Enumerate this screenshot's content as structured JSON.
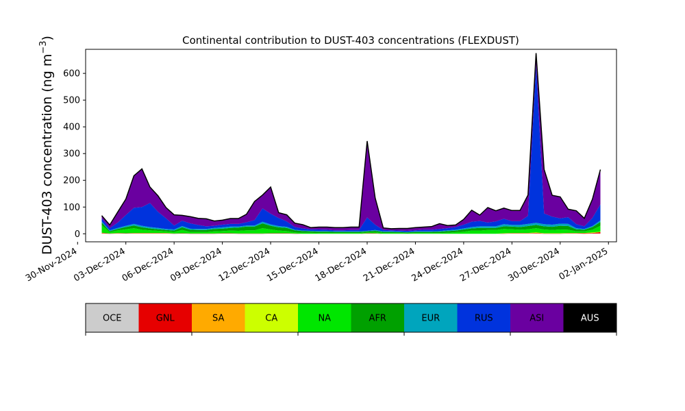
{
  "chart_data": {
    "type": "area",
    "stacked": true,
    "title": "Continental contribution to DUST-403 concentrations (FLEXDUST)",
    "ylabel": "DUST-403 concentration (ng m⁻³)",
    "ylabel_base": "DUST-403 concentration (ng m",
    "ylabel_exp": "−3",
    "ylabel_close": ")",
    "xlabel": "",
    "ylim": [
      -30,
      690
    ],
    "xlim": [
      "2024-11-30T12:00",
      "2025-01-02T12:00"
    ],
    "yticks": [
      0,
      100,
      200,
      300,
      400,
      500,
      600
    ],
    "xticks": [
      "2024-11-30",
      "2024-12-03",
      "2024-12-06",
      "2024-12-09",
      "2024-12-12",
      "2024-12-15",
      "2024-12-18",
      "2024-12-21",
      "2024-12-24",
      "2024-12-27",
      "2024-12-30",
      "2025-01-02"
    ],
    "xtick_labels": [
      "30-Nov-2024",
      "03-Dec-2024",
      "06-Dec-2024",
      "09-Dec-2024",
      "12-Dec-2024",
      "15-Dec-2024",
      "18-Dec-2024",
      "21-Dec-2024",
      "24-Dec-2024",
      "27-Dec-2024",
      "30-Dec-2024",
      "02-Jan-2025"
    ],
    "x": [
      "2024-12-01T12:00",
      "2024-12-02T00:00",
      "2024-12-02T12:00",
      "2024-12-03T00:00",
      "2024-12-03T12:00",
      "2024-12-04T00:00",
      "2024-12-04T12:00",
      "2024-12-05T00:00",
      "2024-12-05T12:00",
      "2024-12-06T00:00",
      "2024-12-06T12:00",
      "2024-12-07T00:00",
      "2024-12-07T12:00",
      "2024-12-08T00:00",
      "2024-12-08T12:00",
      "2024-12-09T00:00",
      "2024-12-09T12:00",
      "2024-12-10T00:00",
      "2024-12-10T12:00",
      "2024-12-11T00:00",
      "2024-12-11T12:00",
      "2024-12-12T00:00",
      "2024-12-12T12:00",
      "2024-12-13T00:00",
      "2024-12-13T12:00",
      "2024-12-14T00:00",
      "2024-12-14T12:00",
      "2024-12-15T00:00",
      "2024-12-15T12:00",
      "2024-12-16T00:00",
      "2024-12-16T12:00",
      "2024-12-17T00:00",
      "2024-12-17T12:00",
      "2024-12-18T00:00",
      "2024-12-18T12:00",
      "2024-12-19T00:00",
      "2024-12-19T12:00",
      "2024-12-20T00:00",
      "2024-12-20T12:00",
      "2024-12-21T00:00",
      "2024-12-21T12:00",
      "2024-12-22T00:00",
      "2024-12-22T12:00",
      "2024-12-23T00:00",
      "2024-12-23T12:00",
      "2024-12-24T00:00",
      "2024-12-24T12:00",
      "2024-12-25T00:00",
      "2024-12-25T12:00",
      "2024-12-26T00:00",
      "2024-12-26T12:00",
      "2024-12-27T00:00",
      "2024-12-27T12:00",
      "2024-12-28T00:00",
      "2024-12-28T12:00",
      "2024-12-29T00:00",
      "2024-12-29T12:00",
      "2024-12-30T00:00",
      "2024-12-30T12:00",
      "2024-12-31T00:00",
      "2024-12-31T12:00",
      "2025-01-01T00:00",
      "2025-01-01T12:00"
    ],
    "series": [
      {
        "name": "OCE",
        "color": "#cccccc",
        "values": [
          1,
          0,
          1,
          1,
          1,
          1,
          1,
          1,
          1,
          0,
          1,
          0,
          0,
          0,
          0,
          1,
          1,
          0,
          0,
          0,
          0,
          1,
          1,
          1,
          0,
          0,
          0,
          0,
          0,
          0,
          0,
          0,
          0,
          1,
          1,
          0,
          0,
          0,
          0,
          0,
          0,
          0,
          0,
          0,
          0,
          0,
          0,
          0,
          0,
          0,
          0,
          1,
          1,
          1,
          1,
          0,
          0,
          0,
          1,
          1,
          0,
          1,
          1
        ]
      },
      {
        "name": "GNL",
        "color": "#e60000",
        "values": [
          2,
          1,
          1,
          1,
          1,
          1,
          1,
          1,
          1,
          1,
          1,
          1,
          1,
          1,
          1,
          1,
          1,
          1,
          1,
          1,
          1,
          1,
          1,
          1,
          1,
          0,
          0,
          0,
          0,
          0,
          0,
          0,
          0,
          1,
          1,
          0,
          0,
          0,
          0,
          0,
          0,
          0,
          0,
          0,
          0,
          0,
          0,
          0,
          0,
          0,
          1,
          1,
          1,
          1,
          2,
          1,
          1,
          1,
          1,
          1,
          2,
          2,
          5
        ]
      },
      {
        "name": "SA",
        "color": "#ffaa00",
        "values": [
          0,
          0,
          0,
          0,
          0,
          0,
          0,
          0,
          0,
          0,
          0,
          0,
          0,
          0,
          0,
          0,
          0,
          0,
          0,
          0,
          0,
          0,
          0,
          0,
          0,
          0,
          0,
          0,
          0,
          0,
          0,
          0,
          0,
          0,
          0,
          0,
          0,
          0,
          0,
          0,
          0,
          0,
          0,
          0,
          0,
          0,
          0,
          0,
          0,
          0,
          0,
          0,
          0,
          0,
          0,
          0,
          0,
          0,
          0,
          0,
          0,
          0,
          0
        ]
      },
      {
        "name": "CA",
        "color": "#ccff00",
        "values": [
          1,
          0,
          1,
          0,
          1,
          1,
          1,
          1,
          1,
          0,
          0,
          0,
          0,
          0,
          0,
          0,
          0,
          0,
          0,
          0,
          0,
          0,
          0,
          0,
          0,
          0,
          0,
          0,
          0,
          0,
          0,
          0,
          0,
          0,
          0,
          0,
          0,
          0,
          0,
          0,
          0,
          0,
          0,
          0,
          0,
          0,
          0,
          0,
          0,
          0,
          1,
          1,
          1,
          1,
          2,
          1,
          1,
          1,
          1,
          1,
          1,
          2,
          2
        ]
      },
      {
        "name": "NA",
        "color": "#00e600",
        "values": [
          28,
          5,
          10,
          15,
          18,
          12,
          10,
          8,
          6,
          6,
          12,
          6,
          6,
          6,
          8,
          8,
          10,
          10,
          12,
          12,
          20,
          14,
          10,
          8,
          4,
          4,
          4,
          3,
          3,
          3,
          3,
          3,
          3,
          3,
          4,
          3,
          3,
          3,
          2,
          3,
          3,
          3,
          3,
          4,
          6,
          8,
          12,
          12,
          14,
          14,
          16,
          14,
          12,
          14,
          16,
          14,
          12,
          14,
          12,
          6,
          6,
          10,
          22
        ]
      },
      {
        "name": "AFR",
        "color": "#00a000",
        "values": [
          10,
          4,
          5,
          8,
          10,
          9,
          7,
          6,
          5,
          5,
          10,
          8,
          7,
          7,
          9,
          9,
          10,
          12,
          14,
          14,
          18,
          14,
          12,
          12,
          8,
          6,
          5,
          5,
          5,
          4,
          4,
          4,
          4,
          4,
          5,
          4,
          4,
          3,
          3,
          4,
          4,
          4,
          5,
          6,
          6,
          8,
          8,
          10,
          8,
          8,
          10,
          10,
          10,
          12,
          12,
          12,
          12,
          14,
          14,
          8,
          6,
          10,
          14
        ]
      },
      {
        "name": "EUR",
        "color": "#00a5bd",
        "values": [
          4,
          3,
          4,
          5,
          6,
          6,
          5,
          5,
          4,
          4,
          5,
          4,
          4,
          4,
          4,
          5,
          5,
          4,
          4,
          4,
          6,
          5,
          5,
          4,
          2,
          2,
          2,
          2,
          2,
          2,
          2,
          2,
          2,
          2,
          3,
          2,
          2,
          2,
          2,
          2,
          2,
          2,
          2,
          3,
          3,
          4,
          5,
          6,
          6,
          6,
          8,
          6,
          8,
          8,
          8,
          8,
          8,
          8,
          8,
          4,
          3,
          4,
          6
        ]
      },
      {
        "name": "RUS",
        "color": "#0033dd",
        "values": [
          12,
          8,
          20,
          40,
          60,
          70,
          90,
          60,
          40,
          15,
          20,
          20,
          15,
          10,
          8,
          10,
          10,
          10,
          12,
          20,
          50,
          40,
          30,
          20,
          10,
          8,
          6,
          6,
          5,
          4,
          4,
          5,
          5,
          50,
          20,
          5,
          4,
          4,
          4,
          4,
          6,
          6,
          8,
          8,
          10,
          14,
          20,
          20,
          14,
          18,
          20,
          14,
          14,
          30,
          590,
          40,
          30,
          20,
          25,
          15,
          10,
          30,
          60
        ]
      },
      {
        "name": "ASI",
        "color": "#6a00a0",
        "values": [
          10,
          12,
          40,
          60,
          120,
          143,
          60,
          60,
          40,
          40,
          20,
          25,
          25,
          28,
          18,
          17,
          20,
          20,
          30,
          70,
          50,
          100,
          20,
          25,
          15,
          14,
          6,
          9,
          10,
          10,
          10,
          11,
          11,
          286,
          100,
          8,
          6,
          8,
          9,
          10,
          10,
          12,
          20,
          10,
          8,
          20,
          43,
          22,
          56,
          40,
          40,
          40,
          40,
          78,
          45,
          165,
          80,
          80,
          30,
          50,
          30,
          70,
          130
        ]
      },
      {
        "name": "AUS",
        "color": "#000000",
        "values": [
          0,
          0,
          0,
          0,
          0,
          0,
          0,
          0,
          0,
          0,
          0,
          0,
          0,
          0,
          0,
          0,
          0,
          0,
          0,
          0,
          0,
          0,
          0,
          0,
          0,
          0,
          0,
          0,
          0,
          0,
          0,
          0,
          0,
          0,
          0,
          0,
          0,
          0,
          0,
          0,
          0,
          0,
          0,
          0,
          0,
          0,
          0,
          0,
          0,
          0,
          0,
          0,
          0,
          0,
          0,
          0,
          0,
          0,
          0,
          0,
          0,
          0,
          0
        ]
      }
    ],
    "legend": {
      "placement": "below",
      "entries": [
        {
          "label": "OCE",
          "color": "#cccccc",
          "text_color": "#000000"
        },
        {
          "label": "GNL",
          "color": "#e60000",
          "text_color": "#000000"
        },
        {
          "label": "SA",
          "color": "#ffaa00",
          "text_color": "#000000"
        },
        {
          "label": "CA",
          "color": "#ccff00",
          "text_color": "#000000"
        },
        {
          "label": "NA",
          "color": "#00e600",
          "text_color": "#000000"
        },
        {
          "label": "AFR",
          "color": "#00a000",
          "text_color": "#000000"
        },
        {
          "label": "EUR",
          "color": "#00a5bd",
          "text_color": "#000000"
        },
        {
          "label": "RUS",
          "color": "#0033dd",
          "text_color": "#000000"
        },
        {
          "label": "ASI",
          "color": "#6a00a0",
          "text_color": "#000000"
        },
        {
          "label": "AUS",
          "color": "#000000",
          "text_color": "#ffffff"
        }
      ]
    },
    "grid": false,
    "total_outline_color": "#000000"
  }
}
